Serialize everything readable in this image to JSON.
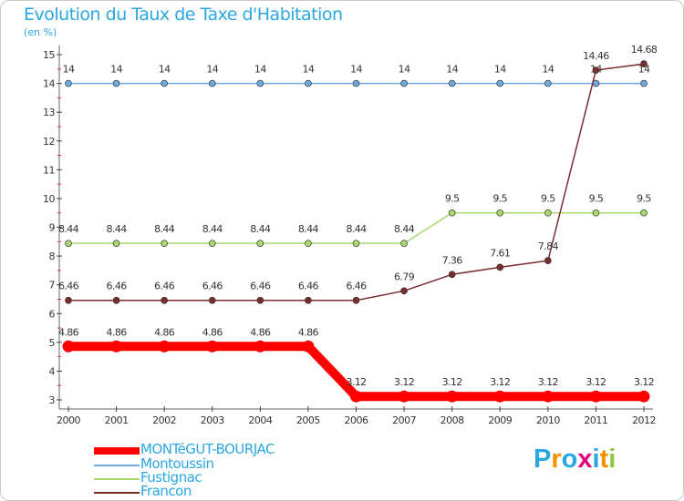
{
  "title": "Evolution du Taux de Taxe d'Habitation",
  "subtitle": "(en %)",
  "logo": {
    "text": "Proxiti",
    "letters": [
      "P",
      "r",
      "o",
      "x",
      "i",
      "t",
      "i"
    ],
    "colors": [
      "#2aa7e0",
      "#f39200",
      "#2aa7e0",
      "#e5007e",
      "#2aa7e0",
      "#f39200",
      "#8cc63f"
    ]
  },
  "chart_data": {
    "type": "line",
    "x": [
      "2000",
      "2001",
      "2002",
      "2003",
      "2004",
      "2005",
      "2006",
      "2007",
      "2008",
      "2009",
      "2010",
      "2011",
      "2012"
    ],
    "ylim": [
      3,
      15
    ],
    "yticks": [
      "3",
      "4",
      "5",
      "6",
      "7",
      "8",
      "9",
      "10",
      "11",
      "12",
      "13",
      "14",
      "15"
    ],
    "grid": false,
    "legend_position": "bottom-left",
    "series": [
      {
        "name": "MONTéGUT-BOURJAC",
        "color": "#ff0000",
        "bold": true,
        "values": [
          4.86,
          4.86,
          4.86,
          4.86,
          4.86,
          4.86,
          3.12,
          3.12,
          3.12,
          3.12,
          3.12,
          3.12,
          3.12
        ],
        "labels": [
          "4.86",
          "4.86",
          "4.86",
          "4.86",
          "4.86",
          "4.86",
          "3.12",
          "3.12",
          "3.12",
          "3.12",
          "3.12",
          "3.12",
          "3.12"
        ]
      },
      {
        "name": "Montoussin",
        "color": "#6fa8dc",
        "bold": false,
        "values": [
          14,
          14,
          14,
          14,
          14,
          14,
          14,
          14,
          14,
          14,
          14,
          14,
          14
        ],
        "labels": [
          "14",
          "14",
          "14",
          "14",
          "14",
          "14",
          "14",
          "14",
          "14",
          "14",
          "14",
          "14",
          "14"
        ]
      },
      {
        "name": "Fustignac",
        "color": "#a9d86e",
        "bold": false,
        "values": [
          8.44,
          8.44,
          8.44,
          8.44,
          8.44,
          8.44,
          8.44,
          8.44,
          9.5,
          9.5,
          9.5,
          9.5,
          9.5
        ],
        "labels": [
          "8.44",
          "8.44",
          "8.44",
          "8.44",
          "8.44",
          "8.44",
          "8.44",
          "8.44",
          "9.5",
          "9.5",
          "9.5",
          "9.5",
          "9.5"
        ]
      },
      {
        "name": "Francon",
        "color": "#7b2d2d",
        "bold": false,
        "values": [
          6.46,
          6.46,
          6.46,
          6.46,
          6.46,
          6.46,
          6.46,
          6.79,
          7.36,
          7.61,
          7.84,
          14.46,
          14.68
        ],
        "labels": [
          "6.46",
          "6.46",
          "6.46",
          "6.46",
          "6.46",
          "6.46",
          "6.46",
          "6.79",
          "7.36",
          "7.61",
          "7.84",
          "14.46",
          "14.68"
        ]
      }
    ]
  }
}
